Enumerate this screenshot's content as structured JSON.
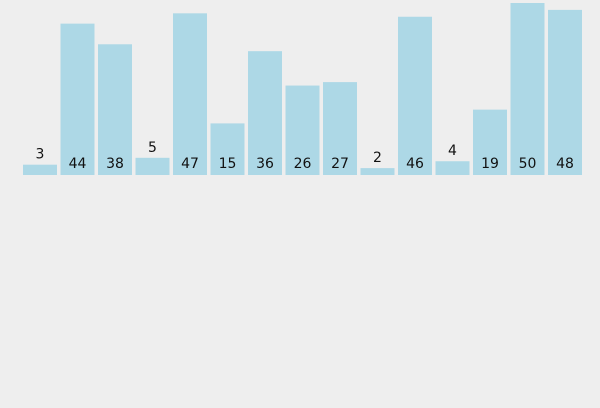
{
  "chart_data": {
    "type": "bar",
    "values": [
      3,
      44,
      38,
      5,
      47,
      15,
      36,
      26,
      27,
      2,
      46,
      4,
      19,
      50,
      48
    ],
    "color": "#add8e6",
    "ylim": [
      0,
      50
    ]
  }
}
